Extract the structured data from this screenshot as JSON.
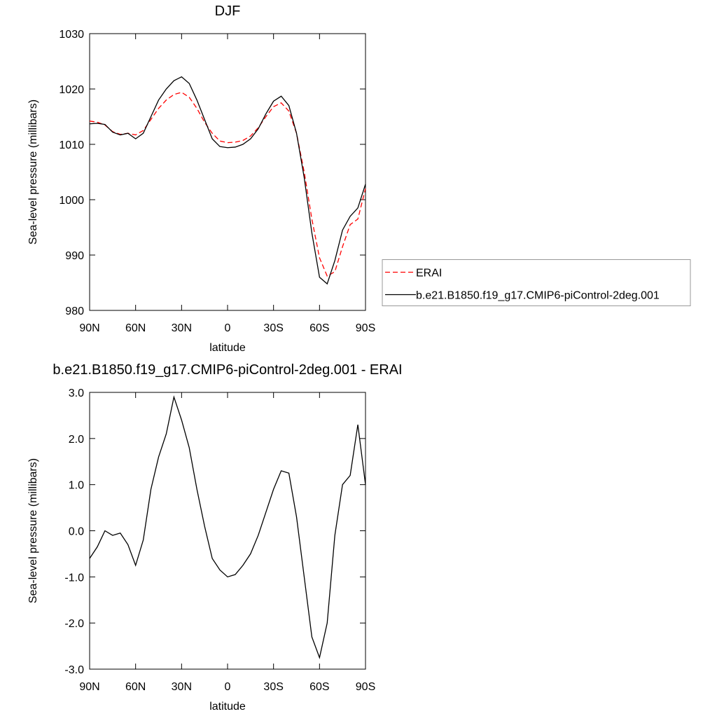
{
  "chart_data": [
    {
      "type": "line",
      "title": "DJF",
      "x_label": "latitude",
      "y_label": "Sea-level pressure (millibars)",
      "x": [
        90,
        85,
        80,
        75,
        70,
        65,
        60,
        55,
        50,
        45,
        40,
        35,
        30,
        25,
        20,
        15,
        10,
        5,
        0,
        -5,
        -10,
        -15,
        -20,
        -25,
        -30,
        -35,
        -40,
        -45,
        -50,
        -55,
        -60,
        -65,
        -70,
        -75,
        -80,
        -85,
        -90
      ],
      "xlim": [
        90,
        -90
      ],
      "xticks": [
        {
          "value": 90,
          "label": "90N"
        },
        {
          "value": 60,
          "label": "60N"
        },
        {
          "value": 30,
          "label": "30N"
        },
        {
          "value": 0,
          "label": "0"
        },
        {
          "value": -30,
          "label": "30S"
        },
        {
          "value": -60,
          "label": "60S"
        },
        {
          "value": -90,
          "label": "90S"
        }
      ],
      "ylim": [
        980,
        1030
      ],
      "yticks": [
        980,
        990,
        1000,
        1010,
        1020,
        1030
      ],
      "legend": "right",
      "series": [
        {
          "name": "ERAI",
          "color": "#ff0000",
          "dashed": true,
          "values": [
            1014.2,
            1014.0,
            1013.5,
            1012.3,
            1011.8,
            1012.0,
            1011.7,
            1012.5,
            1014.5,
            1016.5,
            1018.0,
            1019.0,
            1019.4,
            1018.5,
            1016.5,
            1014.0,
            1012.0,
            1010.6,
            1010.3,
            1010.4,
            1010.7,
            1011.5,
            1013.0,
            1015.0,
            1016.8,
            1017.5,
            1016.0,
            1012.0,
            1005.0,
            996.5,
            989.5,
            986.2,
            987.0,
            991.5,
            995.5,
            996.5,
            1002.0
          ]
        },
        {
          "name": "b.e21.B1850.f19_g17.CMIP6-piControl-2deg.001",
          "color": "#000000",
          "dashed": false,
          "values": [
            1013.7,
            1013.8,
            1013.6,
            1012.2,
            1011.7,
            1012.0,
            1011.0,
            1012.0,
            1015.0,
            1018.0,
            1020.0,
            1021.5,
            1022.2,
            1021.0,
            1018.0,
            1014.5,
            1011.0,
            1009.6,
            1009.4,
            1009.5,
            1010.0,
            1011.0,
            1012.8,
            1015.5,
            1017.8,
            1018.7,
            1017.0,
            1012.0,
            1004.0,
            994.0,
            986.0,
            984.8,
            989.0,
            994.5,
            997.0,
            998.5,
            1002.8
          ]
        }
      ]
    },
    {
      "type": "line",
      "title": "b.e21.B1850.f19_g17.CMIP6-piControl-2deg.001 - ERAI",
      "x_label": "latitude",
      "y_label": "Sea-level pressure (millibars)",
      "x": [
        90,
        85,
        80,
        75,
        70,
        65,
        60,
        55,
        50,
        45,
        40,
        35,
        30,
        25,
        20,
        15,
        10,
        5,
        0,
        -5,
        -10,
        -15,
        -20,
        -25,
        -30,
        -35,
        -40,
        -45,
        -50,
        -55,
        -60,
        -65,
        -70,
        -75,
        -80,
        -85,
        -90
      ],
      "xlim": [
        90,
        -90
      ],
      "xticks": [
        {
          "value": 90,
          "label": "90N"
        },
        {
          "value": 60,
          "label": "60N"
        },
        {
          "value": 30,
          "label": "30N"
        },
        {
          "value": 0,
          "label": "0"
        },
        {
          "value": -30,
          "label": "30S"
        },
        {
          "value": -60,
          "label": "60S"
        },
        {
          "value": -90,
          "label": "90S"
        }
      ],
      "ylim": [
        -3,
        3
      ],
      "yticks": [
        {
          "value": -3,
          "label": "-3.0"
        },
        {
          "value": -2,
          "label": "-2.0"
        },
        {
          "value": -1,
          "label": "-1.0"
        },
        {
          "value": 0,
          "label": "0.0"
        },
        {
          "value": 1,
          "label": "1.0"
        },
        {
          "value": 2,
          "label": "2.0"
        },
        {
          "value": 3,
          "label": "3.0"
        }
      ],
      "series": [
        {
          "color": "#000000",
          "dashed": false,
          "values": [
            -0.6,
            -0.35,
            0.0,
            -0.1,
            -0.05,
            -0.3,
            -0.75,
            -0.2,
            0.9,
            1.6,
            2.1,
            2.9,
            2.4,
            1.8,
            0.9,
            0.1,
            -0.6,
            -0.85,
            -1.0,
            -0.95,
            -0.75,
            -0.5,
            -0.1,
            0.4,
            0.9,
            1.3,
            1.25,
            0.3,
            -1.0,
            -2.3,
            -2.75,
            -2.0,
            -0.1,
            1.0,
            1.2,
            2.3,
            1.0
          ]
        }
      ]
    }
  ]
}
